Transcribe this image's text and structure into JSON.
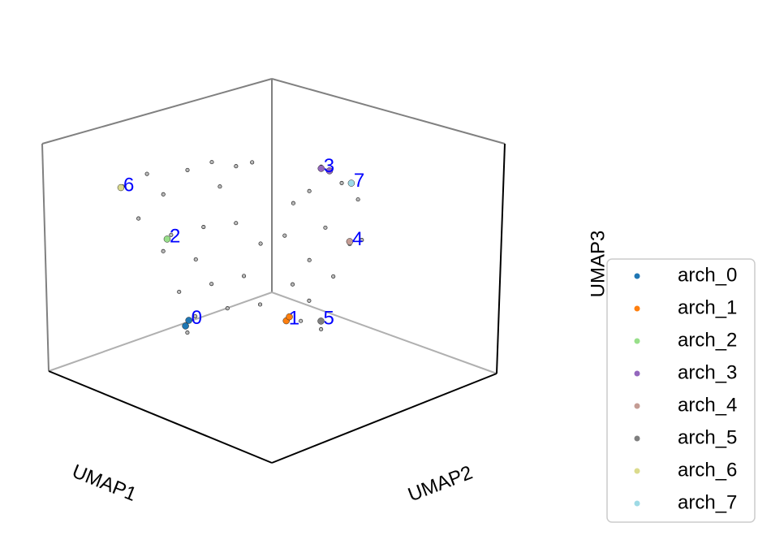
{
  "chart_data": {
    "type": "scatter3d",
    "xlabel": "UMAP1",
    "ylabel": "UMAP2",
    "zlabel": "UMAP3",
    "xlim": [
      0,
      10
    ],
    "ylim": [
      0,
      10
    ],
    "zlim": [
      0,
      10
    ],
    "background_points": {
      "color": "#bbbbbb",
      "edgecolor": "#222222",
      "x": [
        2.1,
        1.85,
        2.5,
        2.54,
        3.33,
        3.44,
        3.48,
        4.24,
        5.23,
        6.7,
        6.49,
        8.08,
        6.89,
        0.45,
        2.19,
        2.41,
        2.88,
        4.7,
        4.26,
        4.73,
        5.13,
        6.69,
        6.8,
        6.7,
        3.03,
        2.14,
        2.36,
        3.95,
        4.35,
        1.92,
        5.33,
        1.14,
        1.35,
        1.83,
        3.75,
        4.71,
        1.98
      ],
      "y": [
        8.8,
        7.46,
        6.3,
        5.25,
        4.96,
        4.35,
        8.37,
        6.6,
        3.06,
        3.62,
        4.86,
        4.28,
        5.98,
        6.43,
        6.72,
        5.49,
        4.51,
        5.24,
        7.7,
        4.19,
        2.77,
        3.25,
        5.17,
        2.72,
        7.92,
        4.86,
        3.63,
        3.05,
        1.63,
        6.09,
        3.7,
        4.58,
        3.35,
        2.37,
        2.48,
        2.54,
        5.78
      ],
      "z": [
        9,
        9,
        9,
        9,
        9,
        9,
        9,
        9,
        9,
        9,
        9,
        9,
        9,
        6,
        6,
        6,
        6,
        6,
        6,
        6,
        6,
        6,
        6,
        6,
        6,
        3,
        3,
        3,
        3,
        3,
        3,
        1,
        1,
        1,
        1,
        1,
        1
      ]
    },
    "series": [
      {
        "name": "arch_0",
        "color": "#1f77b4",
        "x": [
          1.25,
          1.53
        ],
        "y": [
          4.98,
          5.41
        ],
        "z": [
          1,
          1
        ]
      },
      {
        "name": "arch_1",
        "color": "#ff7f0e",
        "x": [
          3.42,
          3.24
        ],
        "y": [
          2.8,
          2.48
        ],
        "z": [
          1,
          1
        ]
      },
      {
        "name": "arch_2",
        "color": "#98df8a",
        "x": [
          2.36
        ],
        "y": [
          7.07
        ],
        "z": [
          6
        ]
      },
      {
        "name": "arch_3",
        "color": "#9467bd",
        "x": [
          5.34,
          5.67
        ],
        "y": [
          3.17,
          3.13
        ],
        "z": [
          9,
          9
        ]
      },
      {
        "name": "arch_4",
        "color": "#c49c94",
        "x": [
          6.53
        ],
        "y": [
          3.09
        ],
        "z": [
          6
        ]
      },
      {
        "name": "arch_5",
        "color": "#7f7f7f",
        "x": [
          4.2
        ],
        "y": [
          2.03
        ],
        "z": [
          1
        ]
      },
      {
        "name": "arch_6",
        "color": "#dbdb8d",
        "x": [
          2.13
        ],
        "y": [
          8.91
        ],
        "z": [
          9
        ]
      },
      {
        "name": "arch_7",
        "color": "#9edae5",
        "x": [
          6.92
        ],
        "y": [
          3.41
        ],
        "z": [
          9
        ]
      }
    ],
    "annotations": [
      {
        "text": "0",
        "x": 1.25,
        "y": 4.98,
        "z": 1
      },
      {
        "text": "1",
        "x": 3.42,
        "y": 2.8,
        "z": 1
      },
      {
        "text": "2",
        "x": 2.36,
        "y": 7.07,
        "z": 6
      },
      {
        "text": "3",
        "x": 5.34,
        "y": 3.17,
        "z": 9
      },
      {
        "text": "4",
        "x": 6.53,
        "y": 3.09,
        "z": 6
      },
      {
        "text": "5",
        "x": 4.2,
        "y": 2.03,
        "z": 1
      },
      {
        "text": "6",
        "x": 2.13,
        "y": 8.91,
        "z": 9
      },
      {
        "text": "7",
        "x": 6.92,
        "y": 3.41,
        "z": 9
      }
    ],
    "annotation_color": "#0000ff",
    "legend": "right"
  }
}
